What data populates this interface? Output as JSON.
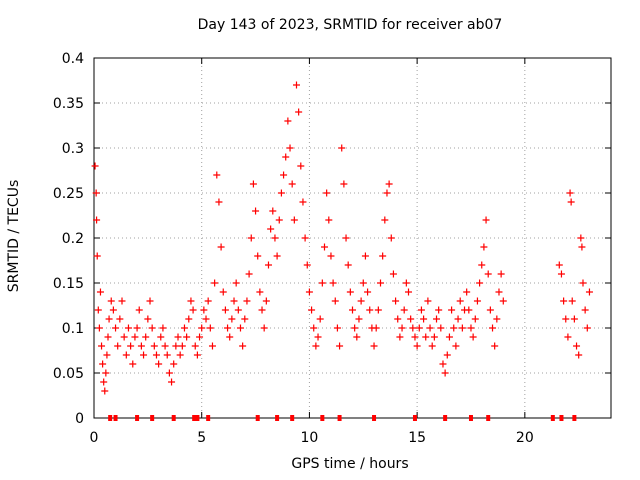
{
  "chart_data": {
    "type": "scatter",
    "title": "Day 143 of 2023, SRMTID for receiver ab07",
    "xlabel": "GPS time / hours",
    "ylabel": "SRMTID / TECUs",
    "xlim": [
      0,
      24
    ],
    "ylim": [
      0,
      0.4
    ],
    "xticks": [
      0,
      5,
      10,
      15,
      20
    ],
    "xtick_labels": [
      "0",
      "5",
      "10",
      "15",
      "20"
    ],
    "yticks": [
      0,
      0.05,
      0.1,
      0.15,
      0.2,
      0.25,
      0.3,
      0.35,
      0.4
    ],
    "ytick_labels": [
      "0",
      "0.05",
      "0.1",
      "0.15",
      "0.2",
      "0.25",
      "0.3",
      "0.35",
      "0.4"
    ],
    "grid": true,
    "marker": "+",
    "color": "#ff0000",
    "series": [
      {
        "name": "SRMTID",
        "points": [
          [
            0.05,
            0.28
          ],
          [
            0.1,
            0.25
          ],
          [
            0.12,
            0.22
          ],
          [
            0.15,
            0.18
          ],
          [
            0.2,
            0.12
          ],
          [
            0.25,
            0.1
          ],
          [
            0.3,
            0.14
          ],
          [
            0.35,
            0.08
          ],
          [
            0.4,
            0.06
          ],
          [
            0.45,
            0.04
          ],
          [
            0.5,
            0.03
          ],
          [
            0.55,
            0.05
          ],
          [
            0.6,
            0.07
          ],
          [
            0.65,
            0.09
          ],
          [
            0.7,
            0.11
          ],
          [
            0.8,
            0.13
          ],
          [
            0.9,
            0.12
          ],
          [
            1.0,
            0.1
          ],
          [
            1.1,
            0.08
          ],
          [
            1.2,
            0.11
          ],
          [
            1.3,
            0.13
          ],
          [
            1.4,
            0.09
          ],
          [
            1.5,
            0.07
          ],
          [
            1.6,
            0.1
          ],
          [
            1.7,
            0.08
          ],
          [
            1.8,
            0.06
          ],
          [
            1.9,
            0.09
          ],
          [
            2.0,
            0.1
          ],
          [
            2.1,
            0.12
          ],
          [
            2.2,
            0.08
          ],
          [
            2.3,
            0.07
          ],
          [
            2.4,
            0.09
          ],
          [
            2.5,
            0.11
          ],
          [
            2.6,
            0.13
          ],
          [
            2.7,
            0.1
          ],
          [
            2.8,
            0.08
          ],
          [
            2.9,
            0.07
          ],
          [
            3.0,
            0.06
          ],
          [
            3.1,
            0.09
          ],
          [
            3.2,
            0.1
          ],
          [
            3.3,
            0.08
          ],
          [
            3.4,
            0.07
          ],
          [
            3.5,
            0.05
          ],
          [
            3.6,
            0.04
          ],
          [
            3.7,
            0.06
          ],
          [
            3.8,
            0.08
          ],
          [
            3.9,
            0.09
          ],
          [
            4.0,
            0.07
          ],
          [
            4.1,
            0.08
          ],
          [
            4.2,
            0.1
          ],
          [
            4.3,
            0.09
          ],
          [
            4.4,
            0.11
          ],
          [
            4.5,
            0.13
          ],
          [
            4.6,
            0.12
          ],
          [
            4.7,
            0.08
          ],
          [
            4.8,
            0.07
          ],
          [
            4.9,
            0.09
          ],
          [
            5.0,
            0.1
          ],
          [
            5.1,
            0.12
          ],
          [
            5.2,
            0.11
          ],
          [
            5.3,
            0.13
          ],
          [
            5.4,
            0.1
          ],
          [
            5.5,
            0.08
          ],
          [
            5.6,
            0.15
          ],
          [
            5.7,
            0.27
          ],
          [
            5.8,
            0.24
          ],
          [
            5.9,
            0.19
          ],
          [
            6.0,
            0.14
          ],
          [
            6.1,
            0.12
          ],
          [
            6.2,
            0.1
          ],
          [
            6.3,
            0.09
          ],
          [
            6.4,
            0.11
          ],
          [
            6.5,
            0.13
          ],
          [
            6.6,
            0.15
          ],
          [
            6.7,
            0.12
          ],
          [
            6.8,
            0.1
          ],
          [
            6.9,
            0.08
          ],
          [
            7.0,
            0.11
          ],
          [
            7.1,
            0.13
          ],
          [
            7.2,
            0.16
          ],
          [
            7.3,
            0.2
          ],
          [
            7.4,
            0.26
          ],
          [
            7.5,
            0.23
          ],
          [
            7.6,
            0.18
          ],
          [
            7.7,
            0.14
          ],
          [
            7.8,
            0.12
          ],
          [
            7.9,
            0.1
          ],
          [
            8.0,
            0.13
          ],
          [
            8.1,
            0.17
          ],
          [
            8.2,
            0.21
          ],
          [
            8.3,
            0.23
          ],
          [
            8.4,
            0.2
          ],
          [
            8.5,
            0.18
          ],
          [
            8.6,
            0.22
          ],
          [
            8.7,
            0.25
          ],
          [
            8.8,
            0.27
          ],
          [
            8.9,
            0.29
          ],
          [
            9.0,
            0.33
          ],
          [
            9.1,
            0.3
          ],
          [
            9.2,
            0.26
          ],
          [
            9.3,
            0.22
          ],
          [
            9.4,
            0.37
          ],
          [
            9.5,
            0.34
          ],
          [
            9.6,
            0.28
          ],
          [
            9.7,
            0.24
          ],
          [
            9.8,
            0.2
          ],
          [
            9.9,
            0.17
          ],
          [
            10.0,
            0.14
          ],
          [
            10.1,
            0.12
          ],
          [
            10.2,
            0.1
          ],
          [
            10.3,
            0.08
          ],
          [
            10.4,
            0.09
          ],
          [
            10.5,
            0.11
          ],
          [
            10.6,
            0.15
          ],
          [
            10.7,
            0.19
          ],
          [
            10.8,
            0.25
          ],
          [
            10.9,
            0.22
          ],
          [
            11.0,
            0.18
          ],
          [
            11.1,
            0.15
          ],
          [
            11.2,
            0.13
          ],
          [
            11.3,
            0.1
          ],
          [
            11.4,
            0.08
          ],
          [
            11.5,
            0.3
          ],
          [
            11.6,
            0.26
          ],
          [
            11.7,
            0.2
          ],
          [
            11.8,
            0.17
          ],
          [
            11.9,
            0.14
          ],
          [
            12.0,
            0.12
          ],
          [
            12.1,
            0.1
          ],
          [
            12.2,
            0.09
          ],
          [
            12.3,
            0.11
          ],
          [
            12.4,
            0.13
          ],
          [
            12.5,
            0.15
          ],
          [
            12.6,
            0.18
          ],
          [
            12.7,
            0.14
          ],
          [
            12.8,
            0.12
          ],
          [
            12.9,
            0.1
          ],
          [
            13.0,
            0.08
          ],
          [
            13.1,
            0.1
          ],
          [
            13.2,
            0.12
          ],
          [
            13.3,
            0.15
          ],
          [
            13.4,
            0.18
          ],
          [
            13.5,
            0.22
          ],
          [
            13.6,
            0.25
          ],
          [
            13.7,
            0.26
          ],
          [
            13.8,
            0.2
          ],
          [
            13.9,
            0.16
          ],
          [
            14.0,
            0.13
          ],
          [
            14.1,
            0.11
          ],
          [
            14.2,
            0.09
          ],
          [
            14.3,
            0.1
          ],
          [
            14.4,
            0.12
          ],
          [
            14.5,
            0.15
          ],
          [
            14.6,
            0.14
          ],
          [
            14.7,
            0.11
          ],
          [
            14.8,
            0.1
          ],
          [
            14.9,
            0.09
          ],
          [
            15.0,
            0.08
          ],
          [
            15.1,
            0.1
          ],
          [
            15.2,
            0.12
          ],
          [
            15.3,
            0.11
          ],
          [
            15.4,
            0.09
          ],
          [
            15.5,
            0.13
          ],
          [
            15.6,
            0.1
          ],
          [
            15.7,
            0.08
          ],
          [
            15.8,
            0.09
          ],
          [
            15.9,
            0.11
          ],
          [
            16.0,
            0.12
          ],
          [
            16.1,
            0.1
          ],
          [
            16.2,
            0.06
          ],
          [
            16.3,
            0.05
          ],
          [
            16.4,
            0.07
          ],
          [
            16.5,
            0.09
          ],
          [
            16.6,
            0.12
          ],
          [
            16.7,
            0.1
          ],
          [
            16.8,
            0.08
          ],
          [
            16.9,
            0.11
          ],
          [
            17.0,
            0.13
          ],
          [
            17.1,
            0.1
          ],
          [
            17.2,
            0.12
          ],
          [
            17.3,
            0.14
          ],
          [
            17.4,
            0.12
          ],
          [
            17.5,
            0.1
          ],
          [
            17.6,
            0.09
          ],
          [
            17.7,
            0.11
          ],
          [
            17.8,
            0.13
          ],
          [
            17.9,
            0.15
          ],
          [
            18.0,
            0.17
          ],
          [
            18.1,
            0.19
          ],
          [
            18.2,
            0.22
          ],
          [
            18.3,
            0.16
          ],
          [
            18.4,
            0.12
          ],
          [
            18.5,
            0.1
          ],
          [
            18.6,
            0.08
          ],
          [
            18.7,
            0.11
          ],
          [
            18.8,
            0.14
          ],
          [
            18.9,
            0.16
          ],
          [
            19.0,
            0.13
          ],
          [
            21.6,
            0.17
          ],
          [
            21.7,
            0.16
          ],
          [
            21.8,
            0.13
          ],
          [
            21.9,
            0.11
          ],
          [
            22.0,
            0.09
          ],
          [
            22.1,
            0.25
          ],
          [
            22.15,
            0.24
          ],
          [
            22.2,
            0.13
          ],
          [
            22.3,
            0.11
          ],
          [
            22.4,
            0.08
          ],
          [
            22.5,
            0.07
          ],
          [
            22.6,
            0.2
          ],
          [
            22.65,
            0.19
          ],
          [
            22.7,
            0.15
          ],
          [
            22.8,
            0.12
          ],
          [
            22.9,
            0.1
          ],
          [
            23.0,
            0.14
          ]
        ]
      }
    ],
    "gap_markers_x": [
      0.75,
      1.0,
      2.0,
      2.7,
      3.7,
      4.65,
      4.8,
      5.3,
      7.6,
      8.5,
      9.2,
      10.6,
      11.4,
      13.0,
      14.9,
      16.3,
      17.5,
      18.3,
      21.3,
      21.7,
      22.3
    ]
  }
}
